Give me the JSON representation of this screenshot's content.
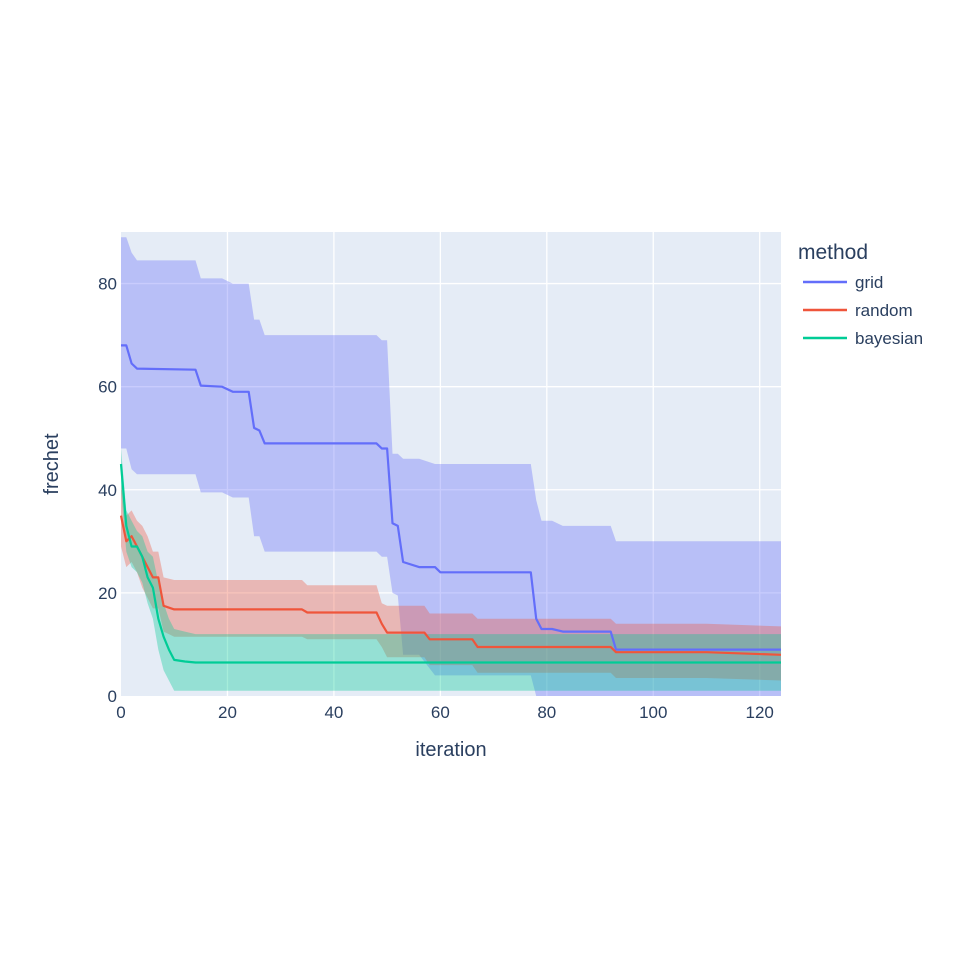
{
  "chart_data": {
    "type": "line",
    "xlabel": "iteration",
    "ylabel": "frechet",
    "xlim": [
      0,
      124
    ],
    "ylim": [
      0,
      90
    ],
    "xticks": [
      0,
      20,
      40,
      60,
      80,
      100,
      120
    ],
    "yticks": [
      0,
      20,
      40,
      60,
      80
    ],
    "grid": true,
    "background": "#e5ecf6",
    "legend": {
      "title": "method",
      "position": "right"
    },
    "series": [
      {
        "name": "grid",
        "color": "#636efa",
        "band_color": "rgba(99,110,250,0.35)",
        "x": [
          0,
          1,
          2,
          3,
          14,
          15,
          19,
          21,
          24,
          25,
          26,
          27,
          48,
          49,
          50,
          51,
          52,
          53,
          56,
          59,
          60,
          77,
          78,
          79,
          81,
          83,
          92,
          93,
          124
        ],
        "y": [
          68,
          68,
          64.5,
          63.5,
          63.3,
          60.2,
          60,
          59,
          59,
          52,
          51.5,
          49,
          49,
          48,
          48,
          33.5,
          33,
          26,
          25,
          25,
          24,
          24,
          15,
          13,
          13,
          12.5,
          12.5,
          9,
          9
        ],
        "upper": [
          89,
          89,
          86,
          84.5,
          84.5,
          81,
          81,
          80,
          80,
          73,
          73,
          70,
          70,
          69,
          69,
          47,
          47,
          46,
          46,
          45,
          45,
          45,
          38,
          34,
          34,
          33,
          33,
          30,
          30
        ],
        "lower": [
          48,
          48,
          44,
          43,
          43,
          39.5,
          39.5,
          38.5,
          38.5,
          31,
          31,
          28,
          28,
          27,
          27,
          20,
          19.5,
          8,
          8,
          4,
          4,
          4,
          0,
          0,
          0,
          0,
          0,
          0,
          0
        ]
      },
      {
        "name": "random",
        "color": "#ef553b",
        "band_color": "rgba(239,85,59,0.35)",
        "x": [
          0,
          1,
          2,
          3,
          4,
          5,
          6,
          7,
          8,
          10,
          34,
          35,
          48,
          49,
          50,
          57,
          58,
          66,
          67,
          92,
          93,
          110,
          124
        ],
        "y": [
          35,
          30,
          31,
          29,
          27,
          25,
          23,
          23,
          17.5,
          16.8,
          16.8,
          16.2,
          16.2,
          14,
          12.3,
          12.3,
          11,
          11,
          9.5,
          9.5,
          8.5,
          8.5,
          8
        ],
        "upper": [
          41,
          35,
          36,
          34,
          33,
          31,
          28,
          28,
          23,
          22.5,
          22.5,
          21.5,
          21.5,
          18,
          17.5,
          17.5,
          16,
          16,
          15,
          15,
          14,
          14,
          13.5
        ],
        "lower": [
          29,
          25,
          26,
          24,
          21,
          19,
          17,
          17,
          12.5,
          11.5,
          11.5,
          11,
          11,
          9.5,
          7.5,
          7.5,
          6,
          6,
          4.5,
          4.5,
          3.5,
          3.5,
          3
        ]
      },
      {
        "name": "bayesian",
        "color": "#00cc96",
        "band_color": "rgba(0,204,150,0.35)",
        "x": [
          0,
          1,
          2,
          3,
          4,
          5,
          6,
          7,
          8,
          9,
          10,
          12,
          14,
          124
        ],
        "y": [
          45,
          33,
          29,
          29,
          27,
          23,
          21,
          15,
          11.5,
          9,
          7,
          6.7,
          6.5,
          6.5
        ],
        "upper": [
          48,
          36,
          34,
          32,
          31,
          28,
          27,
          22,
          18,
          15,
          13,
          12.5,
          12,
          12
        ],
        "lower": [
          40,
          28,
          25,
          24,
          22,
          18,
          15,
          9,
          5,
          3,
          1,
          1,
          1,
          1
        ]
      }
    ]
  }
}
